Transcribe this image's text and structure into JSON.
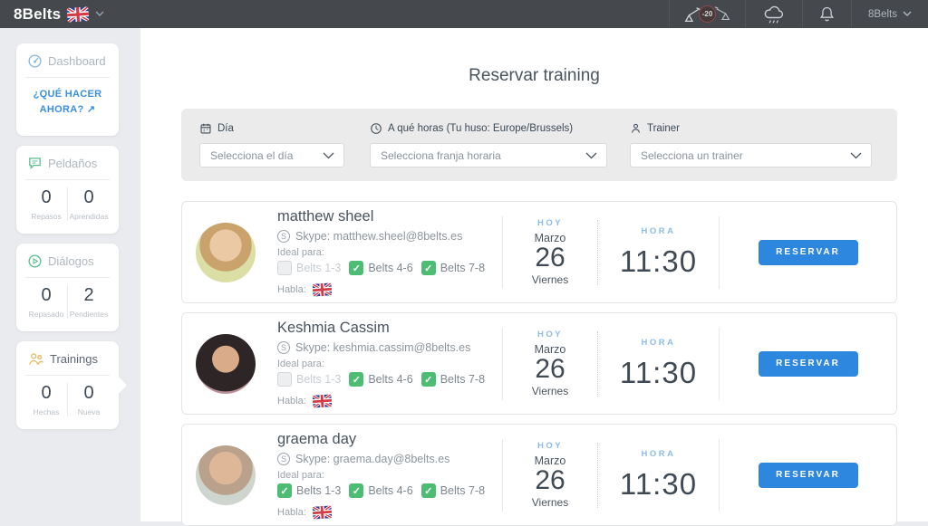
{
  "colors": {
    "topbar_bg": "#45494e",
    "accent_blue": "#2e87df",
    "link_blue": "#3a8fe0",
    "check_green": "#4dbd74",
    "label_light_blue": "#8cbce9"
  },
  "navbar": {
    "logo": "8Belts",
    "score_badge": "-20",
    "account_label": "8Belts"
  },
  "sidebar": {
    "dashboard": {
      "label": "Dashboard",
      "link": "¿QUÉ HACER AHORA? ↗"
    },
    "peldanos": {
      "label": "Peldaños",
      "stats": [
        {
          "value": "0",
          "label": "Repasos"
        },
        {
          "value": "0",
          "label": "Aprendidas"
        }
      ]
    },
    "dialogos": {
      "label": "Diálogos",
      "stats": [
        {
          "value": "0",
          "label": "Repasado"
        },
        {
          "value": "2",
          "label": "Pendientes"
        }
      ]
    },
    "trainings": {
      "label": "Trainings",
      "stats": [
        {
          "value": "0",
          "label": "Hechas"
        },
        {
          "value": "0",
          "label": "Nueva"
        }
      ]
    }
  },
  "main": {
    "title": "Reservar training",
    "filters": [
      {
        "icon": "calendar-icon",
        "label": "Día",
        "value": "Selecciona el día"
      },
      {
        "icon": "clock-icon",
        "label": "A qué horas (Tu huso: Europe/Brussels)",
        "value": "Selecciona franja horaria"
      },
      {
        "icon": "person-icon",
        "label": "Trainer",
        "value": "Selecciona un trainer"
      }
    ],
    "labels": {
      "ideal_para": "Ideal para:",
      "habla": "Habla:",
      "today": "HOY",
      "hour": "HORA",
      "reserve": "RESERVAR"
    },
    "trainers": [
      {
        "name": "matthew sheel",
        "skype_line": "Skype: matthew.sheel@8belts.es",
        "belts": [
          {
            "label": "Belts 1-3",
            "checked": false
          },
          {
            "label": "Belts 4-6",
            "checked": true
          },
          {
            "label": "Belts 7-8",
            "checked": true
          }
        ],
        "month": "Marzo",
        "day": "26",
        "weekday": "Viernes",
        "time": "11:30"
      },
      {
        "name": "Keshmia Cassim",
        "skype_line": "Skype: keshmia.cassim@8belts.es",
        "belts": [
          {
            "label": "Belts 1-3",
            "checked": false
          },
          {
            "label": "Belts 4-6",
            "checked": true
          },
          {
            "label": "Belts 7-8",
            "checked": true
          }
        ],
        "month": "Marzo",
        "day": "26",
        "weekday": "Viernes",
        "time": "11:30"
      },
      {
        "name": "graema day",
        "skype_line": "Skype: graema.day@8belts.es",
        "belts": [
          {
            "label": "Belts 1-3",
            "checked": true
          },
          {
            "label": "Belts 4-6",
            "checked": true
          },
          {
            "label": "Belts 7-8",
            "checked": true
          }
        ],
        "month": "Marzo",
        "day": "26",
        "weekday": "Viernes",
        "time": "11:30"
      }
    ]
  }
}
